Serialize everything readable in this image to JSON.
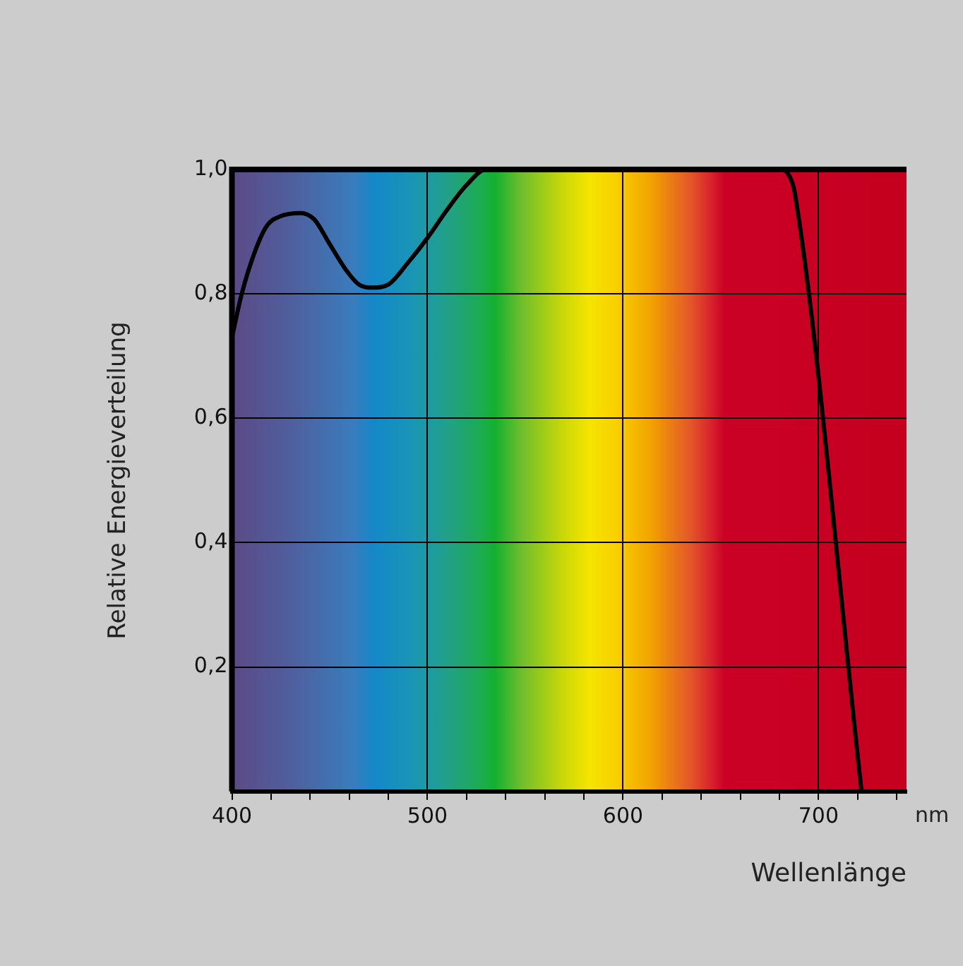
{
  "chart_data": {
    "type": "line",
    "xlabel": "Wellenlänge",
    "ylabel": "Relative Energieverteilung",
    "annotations": [
      "nm"
    ],
    "x": [
      400,
      405,
      412,
      418,
      425,
      435,
      442,
      450,
      458,
      465,
      472,
      480,
      490,
      500,
      510,
      520,
      530,
      680,
      685,
      688,
      722
    ],
    "series": [
      {
        "color": "#000000",
        "values": [
          0.73,
          0.8,
          0.87,
          0.91,
          0.925,
          0.93,
          0.92,
          0.88,
          0.84,
          0.815,
          0.81,
          0.815,
          0.85,
          0.89,
          0.935,
          0.975,
          1.0,
          1.0,
          0.99,
          0.96,
          0
        ]
      }
    ],
    "xlim": [
      400,
      745
    ],
    "xticks": [
      400,
      {
        "value": 420,
        "label": null
      },
      {
        "value": 440,
        "label": null
      },
      {
        "value": 460,
        "label": null
      },
      {
        "value": 480,
        "label": null
      },
      500,
      {
        "value": 520,
        "label": null
      },
      {
        "value": 540,
        "label": null
      },
      {
        "value": 560,
        "label": null
      },
      {
        "value": 580,
        "label": null
      },
      600,
      {
        "value": 620,
        "label": null
      },
      {
        "value": 640,
        "label": null
      },
      {
        "value": 660,
        "label": null
      },
      {
        "value": 680,
        "label": null
      },
      700,
      {
        "value": 720,
        "label": null
      },
      {
        "value": 740,
        "label": null
      }
    ],
    "ylim": [
      0,
      1
    ],
    "yticks": [
      {
        "value": 0.2,
        "label": "0,2"
      },
      {
        "value": 0.4,
        "label": "0,4"
      },
      {
        "value": 0.6,
        "label": "0,6"
      },
      {
        "value": 0.8,
        "label": "0,8"
      },
      {
        "value": 1.0,
        "label": "1,0"
      }
    ],
    "grid": true,
    "legend": false,
    "marker": "none",
    "line_style": "solid"
  }
}
